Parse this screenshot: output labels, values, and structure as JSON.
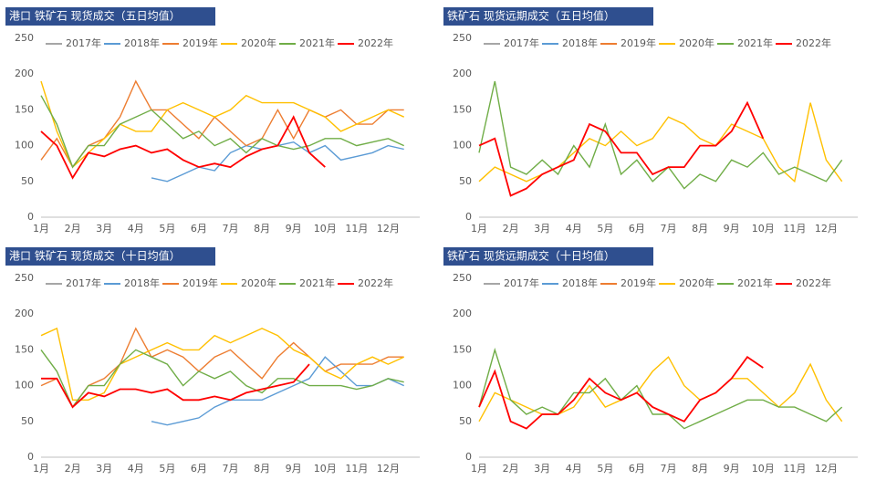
{
  "chart_data": [
    {
      "type": "line",
      "title": "港口 铁矿石 现货成交（五日均值）",
      "categories": [
        "1月",
        null,
        "2月",
        null,
        "3月",
        null,
        "4月",
        null,
        "5月",
        null,
        "6月",
        null,
        "7月",
        null,
        "8月",
        null,
        "9月",
        null,
        "10月",
        null,
        "11月",
        null,
        "12月",
        null
      ],
      "ylim": [
        0,
        250
      ],
      "yticks": [
        0,
        50,
        100,
        150,
        200,
        250
      ],
      "legend": "top",
      "series": [
        {
          "name": "2017年",
          "color": "#a6a6a6",
          "values": [
            null,
            null,
            null,
            null,
            null,
            null,
            null,
            null,
            null,
            null,
            null,
            null,
            null,
            null,
            null,
            null,
            null,
            null,
            null,
            null,
            null,
            null,
            null,
            null
          ]
        },
        {
          "name": "2018年",
          "color": "#5b9bd5",
          "values": [
            null,
            null,
            null,
            null,
            null,
            null,
            null,
            55,
            50,
            60,
            70,
            65,
            90,
            100,
            95,
            100,
            105,
            90,
            100,
            80,
            85,
            90,
            100,
            95
          ]
        },
        {
          "name": "2019年",
          "color": "#ed7d31",
          "values": [
            80,
            110,
            70,
            100,
            110,
            140,
            190,
            150,
            150,
            130,
            110,
            140,
            120,
            100,
            110,
            150,
            110,
            150,
            140,
            150,
            130,
            130,
            150,
            150
          ]
        },
        {
          "name": "2020年",
          "color": "#ffc000",
          "values": [
            190,
            120,
            70,
            90,
            110,
            130,
            120,
            120,
            150,
            160,
            150,
            140,
            150,
            170,
            160,
            160,
            160,
            150,
            140,
            120,
            130,
            140,
            150,
            140
          ]
        },
        {
          "name": "2021年",
          "color": "#70ad47",
          "values": [
            170,
            130,
            70,
            100,
            100,
            130,
            140,
            150,
            130,
            110,
            120,
            100,
            110,
            90,
            110,
            100,
            95,
            100,
            110,
            110,
            100,
            105,
            110,
            100
          ]
        },
        {
          "name": "2022年",
          "color": "#ff0000",
          "values": [
            120,
            100,
            55,
            90,
            85,
            95,
            100,
            90,
            95,
            80,
            70,
            75,
            70,
            85,
            95,
            100,
            140,
            90,
            70,
            null,
            null,
            null,
            null,
            null
          ]
        }
      ]
    },
    {
      "type": "line",
      "title": "铁矿石 现货远期成交（五日均值）",
      "categories": [
        "1月",
        null,
        "2月",
        null,
        "3月",
        null,
        "4月",
        null,
        "5月",
        null,
        "6月",
        null,
        "7月",
        null,
        "8月",
        null,
        "9月",
        null,
        "10月",
        null,
        "11月",
        null,
        "12月",
        null
      ],
      "ylim": [
        0,
        250
      ],
      "yticks": [
        0,
        50,
        100,
        150,
        200,
        250
      ],
      "legend": "top",
      "series": [
        {
          "name": "2017年",
          "color": "#a6a6a6",
          "values": [
            null,
            null,
            null,
            null,
            null,
            null,
            null,
            null,
            null,
            null,
            null,
            null,
            null,
            null,
            null,
            null,
            null,
            null,
            null,
            null,
            null,
            null,
            null,
            null
          ]
        },
        {
          "name": "2018年",
          "color": "#5b9bd5",
          "values": [
            null,
            null,
            null,
            null,
            null,
            null,
            null,
            null,
            null,
            null,
            null,
            null,
            null,
            null,
            null,
            null,
            null,
            null,
            null,
            null,
            null,
            null,
            null,
            null
          ]
        },
        {
          "name": "2019年",
          "color": "#ed7d31",
          "values": [
            null,
            null,
            null,
            null,
            null,
            null,
            null,
            null,
            null,
            null,
            null,
            null,
            null,
            null,
            null,
            null,
            null,
            null,
            null,
            null,
            null,
            null,
            null,
            null
          ]
        },
        {
          "name": "2020年",
          "color": "#ffc000",
          "values": [
            50,
            70,
            60,
            50,
            60,
            70,
            90,
            110,
            100,
            120,
            100,
            110,
            140,
            130,
            110,
            100,
            130,
            120,
            110,
            70,
            50,
            160,
            80,
            50
          ]
        },
        {
          "name": "2021年",
          "color": "#70ad47",
          "values": [
            90,
            190,
            70,
            60,
            80,
            60,
            100,
            70,
            130,
            60,
            80,
            50,
            70,
            40,
            60,
            50,
            80,
            70,
            90,
            60,
            70,
            60,
            50,
            80
          ]
        },
        {
          "name": "2022年",
          "color": "#ff0000",
          "values": [
            100,
            110,
            30,
            40,
            60,
            70,
            80,
            130,
            120,
            90,
            90,
            60,
            70,
            70,
            100,
            100,
            120,
            160,
            110,
            null,
            null,
            null,
            null,
            null
          ]
        }
      ]
    },
    {
      "type": "line",
      "title": "港口 铁矿石 现货成交（十日均值）",
      "categories": [
        "1月",
        null,
        "2月",
        null,
        "3月",
        null,
        "4月",
        null,
        "5月",
        null,
        "6月",
        null,
        "7月",
        null,
        "8月",
        null,
        "9月",
        null,
        "10月",
        null,
        "11月",
        null,
        "12月",
        null
      ],
      "ylim": [
        0,
        250
      ],
      "yticks": [
        0,
        50,
        100,
        150,
        200,
        250
      ],
      "legend": "top",
      "series": [
        {
          "name": "2017年",
          "color": "#a6a6a6",
          "values": [
            null,
            null,
            null,
            null,
            null,
            null,
            null,
            null,
            null,
            null,
            null,
            null,
            null,
            null,
            null,
            null,
            null,
            null,
            null,
            null,
            null,
            null,
            null,
            null
          ]
        },
        {
          "name": "2018年",
          "color": "#5b9bd5",
          "values": [
            null,
            null,
            null,
            null,
            null,
            null,
            null,
            50,
            45,
            50,
            55,
            70,
            80,
            80,
            80,
            90,
            100,
            110,
            140,
            120,
            100,
            100,
            110,
            100
          ]
        },
        {
          "name": "2019年",
          "color": "#ed7d31",
          "values": [
            100,
            110,
            70,
            100,
            110,
            130,
            180,
            140,
            150,
            140,
            120,
            140,
            150,
            130,
            110,
            140,
            160,
            140,
            120,
            130,
            130,
            130,
            140,
            140
          ]
        },
        {
          "name": "2020年",
          "color": "#ffc000",
          "values": [
            170,
            180,
            80,
            80,
            90,
            130,
            140,
            150,
            160,
            150,
            150,
            170,
            160,
            170,
            180,
            170,
            150,
            140,
            120,
            110,
            130,
            140,
            130,
            140
          ]
        },
        {
          "name": "2021年",
          "color": "#70ad47",
          "values": [
            150,
            120,
            70,
            100,
            100,
            130,
            150,
            140,
            130,
            100,
            120,
            110,
            120,
            100,
            90,
            110,
            110,
            100,
            100,
            100,
            95,
            100,
            110,
            105
          ]
        },
        {
          "name": "2022年",
          "color": "#ff0000",
          "values": [
            110,
            110,
            70,
            90,
            85,
            95,
            95,
            90,
            95,
            80,
            80,
            85,
            80,
            90,
            95,
            100,
            105,
            130,
            null,
            null,
            null,
            null,
            null,
            null
          ]
        }
      ]
    },
    {
      "type": "line",
      "title": "铁矿石 现货远期成交（十日均值）",
      "categories": [
        "1月",
        null,
        "2月",
        null,
        "3月",
        null,
        "4月",
        null,
        "5月",
        null,
        "6月",
        null,
        "7月",
        null,
        "8月",
        null,
        "9月",
        null,
        "10月",
        null,
        "11月",
        null,
        "12月",
        null
      ],
      "ylim": [
        0,
        250
      ],
      "yticks": [
        0,
        50,
        100,
        150,
        200,
        250
      ],
      "legend": "top",
      "series": [
        {
          "name": "2017年",
          "color": "#a6a6a6",
          "values": [
            null,
            null,
            null,
            null,
            null,
            null,
            null,
            null,
            null,
            null,
            null,
            null,
            null,
            null,
            null,
            null,
            null,
            null,
            null,
            null,
            null,
            null,
            null,
            null
          ]
        },
        {
          "name": "2018年",
          "color": "#5b9bd5",
          "values": [
            null,
            null,
            null,
            null,
            null,
            null,
            null,
            null,
            null,
            null,
            null,
            null,
            null,
            null,
            null,
            null,
            null,
            null,
            null,
            null,
            null,
            null,
            null,
            null
          ]
        },
        {
          "name": "2019年",
          "color": "#ed7d31",
          "values": [
            null,
            null,
            null,
            null,
            null,
            null,
            null,
            null,
            null,
            null,
            null,
            null,
            null,
            null,
            null,
            null,
            null,
            null,
            null,
            null,
            null,
            null,
            null,
            null
          ]
        },
        {
          "name": "2020年",
          "color": "#ffc000",
          "values": [
            50,
            90,
            80,
            70,
            60,
            60,
            70,
            100,
            70,
            80,
            90,
            120,
            140,
            100,
            80,
            90,
            110,
            110,
            90,
            70,
            90,
            130,
            80,
            50
          ]
        },
        {
          "name": "2021年",
          "color": "#70ad47",
          "values": [
            70,
            150,
            80,
            60,
            70,
            60,
            90,
            90,
            110,
            80,
            100,
            60,
            60,
            40,
            50,
            60,
            70,
            80,
            80,
            70,
            70,
            60,
            50,
            70
          ]
        },
        {
          "name": "2022年",
          "color": "#ff0000",
          "values": [
            70,
            120,
            50,
            40,
            60,
            60,
            80,
            110,
            90,
            80,
            90,
            70,
            60,
            50,
            80,
            90,
            110,
            140,
            125,
            null,
            null,
            null,
            null,
            null
          ]
        }
      ]
    }
  ]
}
